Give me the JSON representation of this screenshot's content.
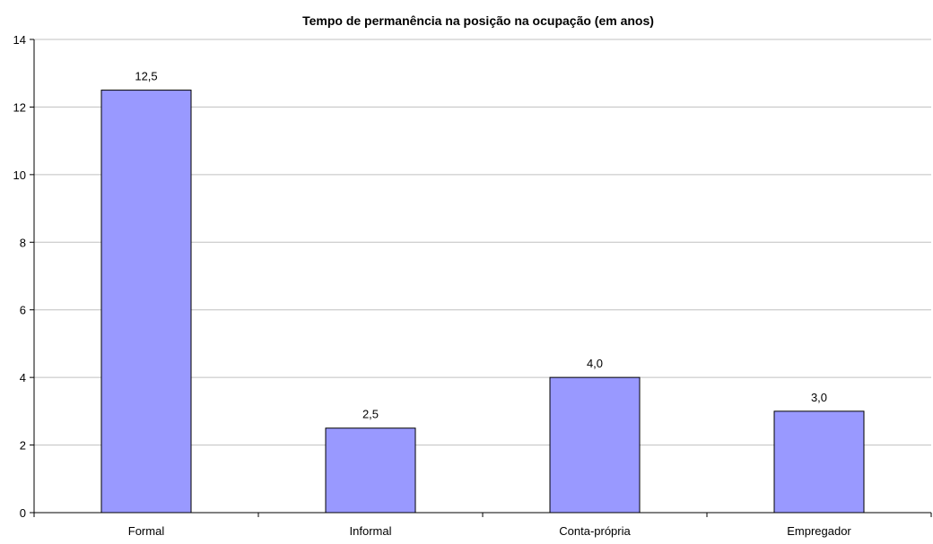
{
  "chart_data": {
    "type": "bar",
    "title": "Tempo de permanência na posição na ocupação (em anos)",
    "xlabel": "",
    "ylabel": "",
    "categories": [
      "Formal",
      "Informal",
      "Conta-própria",
      "Empregador"
    ],
    "values": [
      12.5,
      2.5,
      4.0,
      3.0
    ],
    "data_labels": [
      "12,5",
      "2,5",
      "4,0",
      "3,0"
    ],
    "ylim": [
      0,
      14
    ],
    "yticks": [
      0,
      2,
      4,
      6,
      8,
      10,
      12,
      14
    ],
    "ytick_labels": [
      "0",
      "2",
      "4",
      "6",
      "8",
      "10",
      "12",
      "14"
    ],
    "grid": true,
    "legend": "none",
    "colors": {
      "bar_fill": "#9999FF",
      "bar_stroke": "#000000",
      "grid": "#C0C0C0",
      "axis": "#000000"
    }
  }
}
